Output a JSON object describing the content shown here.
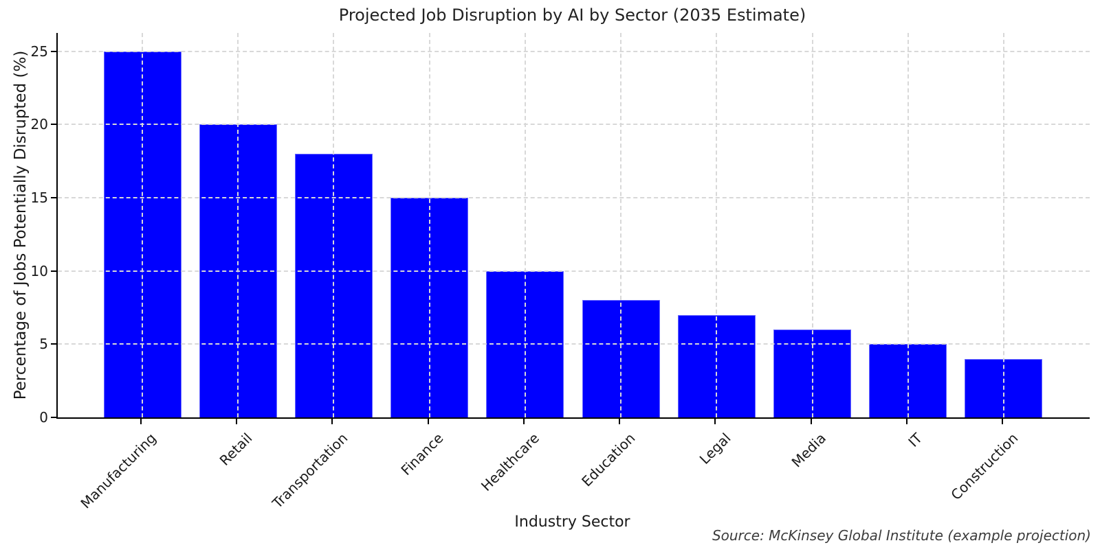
{
  "chart_data": {
    "type": "bar",
    "title": "Projected Job Disruption by AI by Sector (2035 Estimate)",
    "xlabel": "Industry Sector",
    "ylabel": "Percentage of Jobs Potentially Disrupted (%)",
    "categories": [
      "Manufacturing",
      "Retail",
      "Transportation",
      "Finance",
      "Healthcare",
      "Education",
      "Legal",
      "Media",
      "IT",
      "Construction"
    ],
    "values": [
      25,
      20,
      18,
      15,
      10,
      8,
      7,
      6,
      5,
      4
    ],
    "yticks": [
      0,
      5,
      10,
      15,
      20,
      25
    ],
    "ylim": [
      0,
      26.25
    ],
    "bar_color": "#0000ff",
    "grid": true,
    "grid_style": "dashed",
    "legend": "none",
    "source_note": "Source: McKinsey Global Institute (example projection)"
  }
}
